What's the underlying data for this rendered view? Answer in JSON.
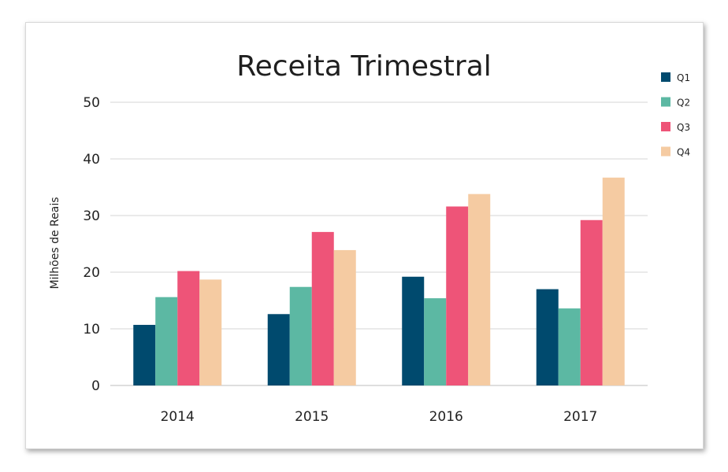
{
  "chart_data": {
    "type": "bar",
    "title": "Receita Trimestral",
    "xlabel": "",
    "ylabel": "Milhões de Reais",
    "categories": [
      "2014",
      "2015",
      "2016",
      "2017"
    ],
    "ylim": [
      0,
      50
    ],
    "yticks": [
      0,
      10,
      20,
      30,
      40,
      50
    ],
    "grid": true,
    "legend_position": "top-right",
    "series": [
      {
        "name": "Q1",
        "color": "#004a6e",
        "values": [
          10.7,
          12.6,
          19.2,
          17.0
        ]
      },
      {
        "name": "Q2",
        "color": "#5cb8a3",
        "values": [
          15.6,
          17.4,
          15.4,
          13.6
        ]
      },
      {
        "name": "Q3",
        "color": "#ee5478",
        "values": [
          20.2,
          27.1,
          31.6,
          29.2
        ]
      },
      {
        "name": "Q4",
        "color": "#f5cba2",
        "values": [
          18.7,
          23.9,
          33.8,
          36.7
        ]
      }
    ]
  }
}
